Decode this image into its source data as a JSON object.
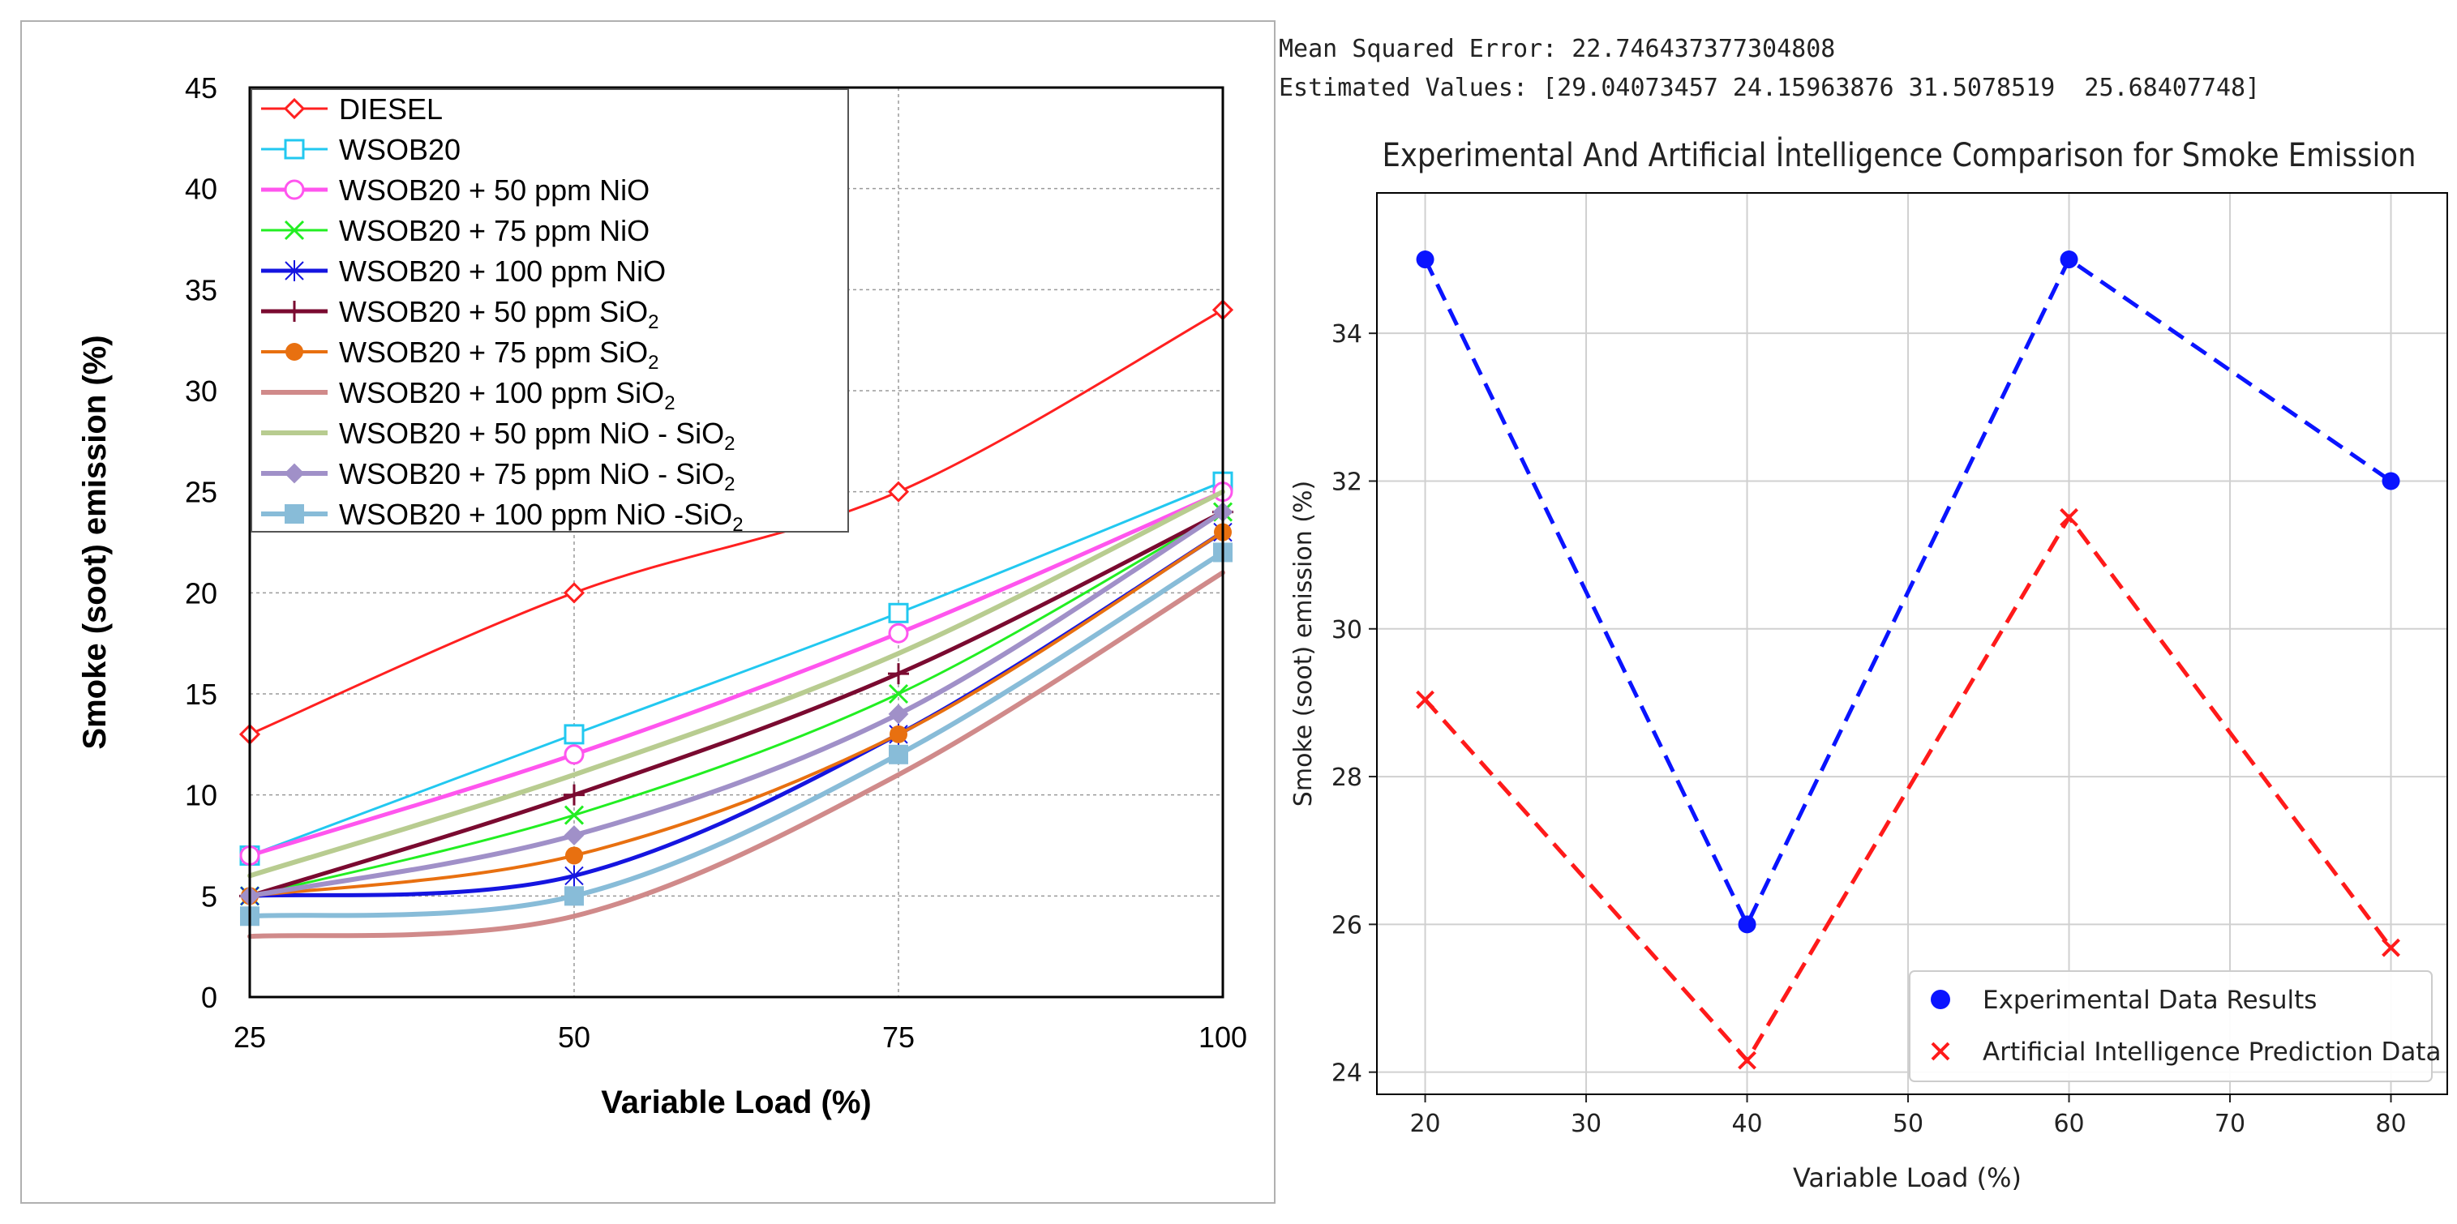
{
  "chart_data": [
    {
      "type": "line",
      "title": "",
      "xlabel": "Variable Load (%)",
      "ylabel": "Smoke  (soot) emission (%)",
      "categories": [
        "25",
        "50",
        "75",
        "100"
      ],
      "x": [
        25,
        50,
        75,
        100
      ],
      "xlim": [
        25,
        100
      ],
      "ylim": [
        0,
        45
      ],
      "yticks": [
        "0",
        "5",
        "10",
        "15",
        "20",
        "25",
        "30",
        "35",
        "40",
        "45"
      ],
      "grid": true,
      "legend_position": "top-left",
      "series": [
        {
          "name": "DIESEL",
          "name_parts": [
            "DIESEL"
          ],
          "values": [
            13,
            20,
            25,
            34
          ],
          "color": "#ff2020",
          "marker": "diamond-open",
          "width": 3
        },
        {
          "name": "WSOB20",
          "name_parts": [
            "WSOB20"
          ],
          "values": [
            7,
            13,
            19,
            25.5
          ],
          "color": "#22c8f0",
          "marker": "square-open",
          "width": 3
        },
        {
          "name": "WSOB20 + 50 ppm NiO",
          "name_parts": [
            "WSOB20 + 50 ppm NiO"
          ],
          "values": [
            7,
            12,
            18,
            25
          ],
          "color": "#ff55ee",
          "marker": "circle-open",
          "width": 5
        },
        {
          "name": "WSOB20 + 75 ppm NiO",
          "name_parts": [
            "WSOB20 + 75 ppm NiO"
          ],
          "values": [
            5,
            9,
            15,
            24
          ],
          "color": "#22ee22",
          "marker": "x",
          "width": 3
        },
        {
          "name": "WSOB20 + 100 ppm NiO",
          "name_parts": [
            "WSOB20 + 100 ppm NiO"
          ],
          "values": [
            5,
            6,
            13,
            23
          ],
          "color": "#1515e0",
          "marker": "star",
          "width": 5
        },
        {
          "name": "WSOB20 + 50 ppm SiO2",
          "name_parts": [
            "WSOB20 + 50 ppm SiO",
            "2",
            ""
          ],
          "values": [
            5,
            10,
            16,
            24
          ],
          "color": "#7a0a30",
          "marker": "plus",
          "width": 5
        },
        {
          "name": "WSOB20 + 75 ppm SiO2",
          "name_parts": [
            "WSOB20 + 75 ppm SiO",
            "2",
            ""
          ],
          "values": [
            5,
            7,
            13,
            23
          ],
          "color": "#e87010",
          "marker": "circle",
          "width": 4
        },
        {
          "name": "WSOB20 + 100 ppm SiO2",
          "name_parts": [
            "WSOB20 + 100 ppm SiO",
            "2",
            ""
          ],
          "values": [
            3,
            4,
            11,
            21
          ],
          "color": "#d08a8a",
          "marker": "none",
          "width": 6
        },
        {
          "name": "WSOB20 + 50 ppm NiO - SiO2",
          "name_parts": [
            "WSOB20 + 50 ppm NiO - SiO",
            "2",
            ""
          ],
          "values": [
            6,
            11,
            17,
            25
          ],
          "color": "#b8cc90",
          "marker": "none",
          "width": 6
        },
        {
          "name": "WSOB20 + 75 ppm NiO - SiO2",
          "name_parts": [
            "WSOB20 + 75 ppm NiO - SiO",
            "2",
            ""
          ],
          "values": [
            5,
            8,
            14,
            24
          ],
          "color": "#a090c8",
          "marker": "diamond",
          "width": 6
        },
        {
          "name": "WSOB20 + 100 ppm NiO -SiO2",
          "name_parts": [
            "WSOB20 + 100 ppm NiO -SiO",
            "2",
            ""
          ],
          "values": [
            4,
            5,
            12,
            22
          ],
          "color": "#88bcd8",
          "marker": "square",
          "width": 6
        }
      ]
    },
    {
      "type": "line",
      "title": "Experimental And Artificial İntelligence Comparison for Smoke Emission",
      "xlabel": "Variable Load (%)",
      "ylabel": "Smoke (soot) emission (%)",
      "x": [
        20,
        40,
        60,
        80
      ],
      "xlim": [
        17,
        83.5
      ],
      "ylim": [
        23.7,
        35.9
      ],
      "xticks": [
        20,
        30,
        40,
        50,
        60,
        70,
        80
      ],
      "yticks": [
        24,
        26,
        28,
        30,
        32,
        34
      ],
      "grid": true,
      "legend_position": "bottom-right",
      "series": [
        {
          "name": "Experimental Data Results",
          "values": [
            35,
            26,
            35,
            32
          ],
          "color": "#0a14ff",
          "marker": "circle"
        },
        {
          "name": "Artificial Intelligence Prediction Data",
          "values": [
            29.04073457,
            24.15963876,
            31.5078519,
            25.68407748
          ],
          "color": "#ff1a1a",
          "marker": "x"
        }
      ]
    }
  ],
  "console": {
    "mse_line": "Mean Squared Error: 22.746437377304808",
    "estimates_line": "Estimated Values: [29.04073457 24.15963876 31.5078519  25.68407748]"
  }
}
